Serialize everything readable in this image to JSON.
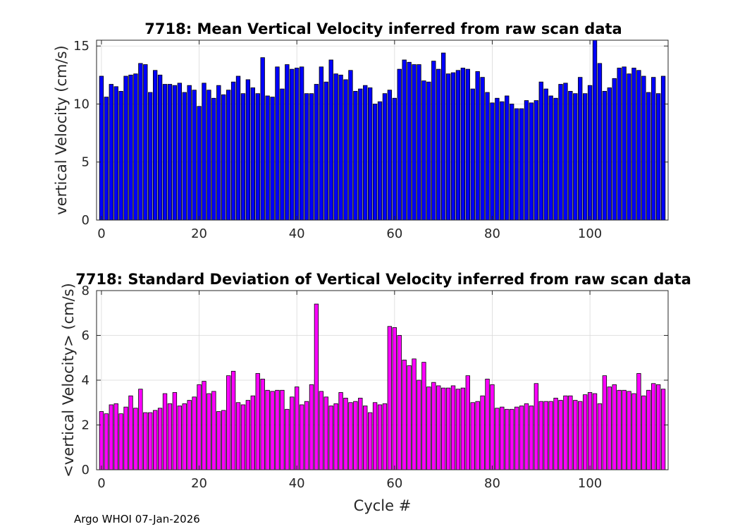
{
  "footer": "Argo WHOI 07-Jan-2026",
  "chart_data": [
    {
      "type": "bar",
      "title": "7718: Mean Vertical Velocity inferred from raw scan data",
      "xlabel": "",
      "ylabel": "vertical Velocity (cm/s)",
      "xlim": [
        -1,
        116
      ],
      "ylim": [
        0,
        15.5
      ],
      "xticks": [
        0,
        20,
        40,
        60,
        80,
        100
      ],
      "yticks": [
        0,
        5,
        10,
        15
      ],
      "grid": true,
      "color": "#0000ff",
      "x_start": 0,
      "values": [
        12.4,
        10.6,
        11.7,
        11.5,
        11.1,
        12.4,
        12.5,
        12.6,
        13.5,
        13.4,
        11.0,
        12.9,
        12.5,
        11.7,
        11.7,
        11.6,
        11.8,
        11.0,
        11.6,
        11.2,
        9.8,
        11.8,
        11.2,
        10.5,
        11.6,
        10.8,
        11.2,
        11.9,
        12.4,
        10.9,
        12.1,
        11.4,
        10.9,
        14.0,
        10.7,
        10.6,
        13.2,
        11.3,
        13.4,
        13.0,
        13.1,
        13.2,
        10.9,
        10.9,
        11.7,
        13.2,
        11.9,
        13.8,
        12.6,
        12.5,
        12.1,
        12.9,
        11.1,
        11.3,
        11.6,
        11.4,
        10.0,
        10.2,
        10.9,
        11.2,
        10.5,
        13.0,
        13.8,
        13.6,
        13.4,
        13.4,
        12.0,
        11.9,
        13.7,
        13.0,
        14.4,
        12.6,
        12.7,
        12.9,
        13.1,
        13.0,
        11.3,
        12.8,
        12.3,
        11.0,
        10.1,
        10.5,
        10.2,
        10.7,
        10.0,
        9.6,
        9.6,
        10.3,
        10.1,
        10.3,
        11.9,
        11.3,
        10.7,
        10.5,
        11.7,
        11.8,
        11.1,
        10.9,
        12.3,
        10.9,
        11.6,
        15.5,
        13.5,
        11.1,
        11.4,
        12.2,
        13.1,
        13.2,
        12.6,
        13.1,
        12.9,
        12.4,
        11.0,
        12.3,
        10.9,
        12.4
      ]
    },
    {
      "type": "bar",
      "title": "7718: Standard Deviation of Vertical Velocity inferred from raw scan data",
      "xlabel": "Cycle #",
      "ylabel": "<vertical Velocity> (cm/s)",
      "xlim": [
        -1,
        116
      ],
      "ylim": [
        0,
        8
      ],
      "xticks": [
        0,
        20,
        40,
        60,
        80,
        100
      ],
      "yticks": [
        0,
        2,
        4,
        6,
        8
      ],
      "grid": true,
      "color": "#ff00ff",
      "x_start": 0,
      "values": [
        2.6,
        2.5,
        2.9,
        2.95,
        2.5,
        2.8,
        3.3,
        2.75,
        3.6,
        2.55,
        2.55,
        2.65,
        2.75,
        3.4,
        2.95,
        3.45,
        2.85,
        2.95,
        3.1,
        3.25,
        3.8,
        3.95,
        3.4,
        3.5,
        2.6,
        2.65,
        4.2,
        4.4,
        3.0,
        2.9,
        3.1,
        3.3,
        4.3,
        4.05,
        3.55,
        3.5,
        3.55,
        3.55,
        2.7,
        3.25,
        3.7,
        2.9,
        3.05,
        3.8,
        7.4,
        3.5,
        3.25,
        2.85,
        2.95,
        3.45,
        3.2,
        3.0,
        3.05,
        3.2,
        2.85,
        2.55,
        3.0,
        2.9,
        2.95,
        6.4,
        6.35,
        6.0,
        4.9,
        4.65,
        4.95,
        4.0,
        4.8,
        3.7,
        3.9,
        3.75,
        3.65,
        3.65,
        3.75,
        3.6,
        3.65,
        4.2,
        3.0,
        3.05,
        3.3,
        4.05,
        3.8,
        2.75,
        2.8,
        2.7,
        2.7,
        2.8,
        2.85,
        2.95,
        2.85,
        3.85,
        3.05,
        3.05,
        3.05,
        3.2,
        3.1,
        3.3,
        3.3,
        3.1,
        3.05,
        3.35,
        3.45,
        3.4,
        2.95,
        4.2,
        3.7,
        3.8,
        3.55,
        3.55,
        3.5,
        3.4,
        4.3,
        3.3,
        3.55,
        3.85,
        3.8,
        3.6
      ]
    }
  ]
}
